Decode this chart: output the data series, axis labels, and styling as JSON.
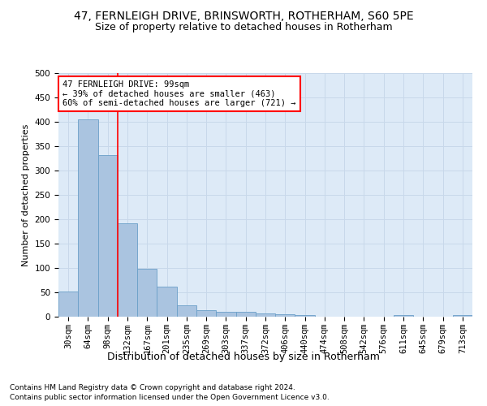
{
  "title1": "47, FERNLEIGH DRIVE, BRINSWORTH, ROTHERHAM, S60 5PE",
  "title2": "Size of property relative to detached houses in Rotherham",
  "xlabel": "Distribution of detached houses by size in Rotherham",
  "ylabel": "Number of detached properties",
  "categories": [
    "30sqm",
    "64sqm",
    "98sqm",
    "132sqm",
    "167sqm",
    "201sqm",
    "235sqm",
    "269sqm",
    "303sqm",
    "337sqm",
    "372sqm",
    "406sqm",
    "440sqm",
    "474sqm",
    "508sqm",
    "542sqm",
    "576sqm",
    "611sqm",
    "645sqm",
    "679sqm",
    "713sqm"
  ],
  "values": [
    52,
    405,
    332,
    192,
    99,
    62,
    24,
    14,
    10,
    10,
    7,
    5,
    4,
    0,
    0,
    0,
    0,
    4,
    0,
    0,
    4
  ],
  "bar_color": "#aac4e0",
  "bar_edge_color": "#6a9fc8",
  "grid_color": "#c8d8ea",
  "background_color": "#ffffff",
  "ax_background_color": "#ddeaf7",
  "annotation_text": "47 FERNLEIGH DRIVE: 99sqm\n← 39% of detached houses are smaller (463)\n60% of semi-detached houses are larger (721) →",
  "annotation_box_color": "white",
  "annotation_box_edge": "red",
  "vline_x_index": 2,
  "vline_color": "red",
  "ylim": [
    0,
    500
  ],
  "yticks": [
    0,
    50,
    100,
    150,
    200,
    250,
    300,
    350,
    400,
    450,
    500
  ],
  "footnote1": "Contains HM Land Registry data © Crown copyright and database right 2024.",
  "footnote2": "Contains public sector information licensed under the Open Government Licence v3.0.",
  "title1_fontsize": 10,
  "title2_fontsize": 9,
  "xlabel_fontsize": 9,
  "ylabel_fontsize": 8,
  "tick_fontsize": 7.5,
  "annotation_fontsize": 7.5,
  "footnote_fontsize": 6.5
}
